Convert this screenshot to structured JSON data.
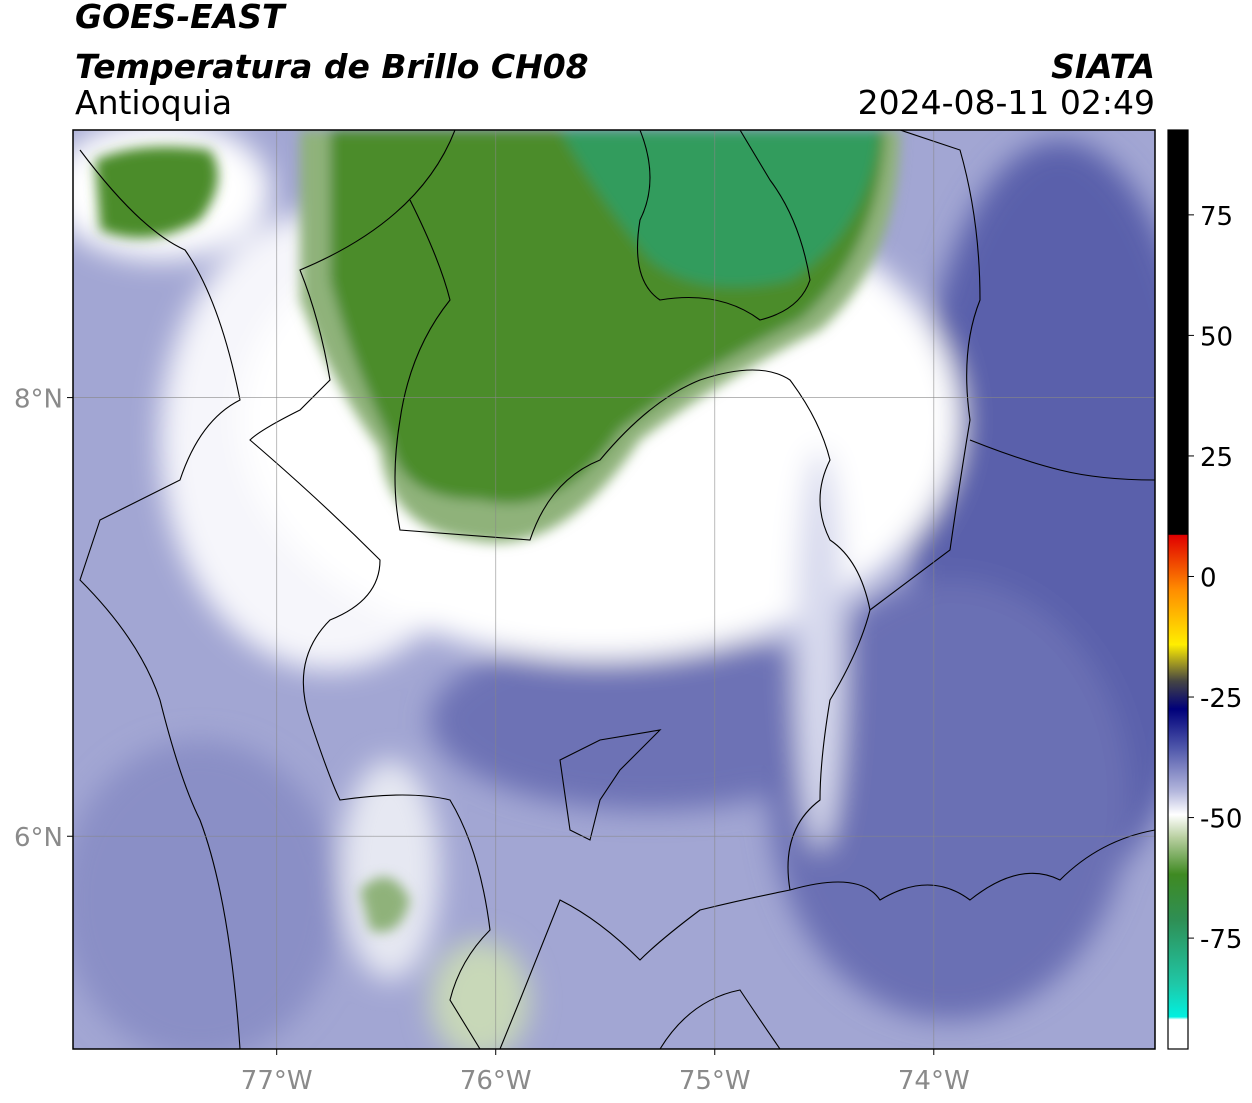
{
  "header": {
    "title": "GOES-EAST",
    "subtitle": "Temperatura de Brillo CH08",
    "region": "Antioquia",
    "source": "SIATA",
    "timestamp": "2024-08-11 02:49"
  },
  "map": {
    "xlim": [
      -77.93,
      -72.99
    ],
    "ylim": [
      5.03,
      9.22
    ],
    "xticks": [
      {
        "value": -77,
        "label": "77°W"
      },
      {
        "value": -76,
        "label": "76°W"
      },
      {
        "value": -75,
        "label": "75°W"
      },
      {
        "value": -74,
        "label": "74°W"
      }
    ],
    "yticks": [
      {
        "value": 8,
        "label": "8°N"
      },
      {
        "value": 6,
        "label": "6°N"
      }
    ],
    "grid": true
  },
  "colorbar": {
    "lim": [
      -98,
      92.6
    ],
    "ticks": [
      75,
      50,
      25,
      0,
      -25,
      -50,
      -75
    ]
  }
}
